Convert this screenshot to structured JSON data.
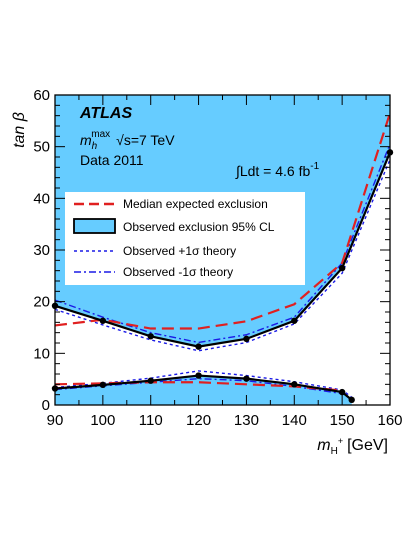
{
  "chart_data": {
    "type": "line",
    "title": "",
    "xlabel": "m",
    "xlabel_sub": "H",
    "xlabel_sup": "+",
    "xlabel_unit": "[GeV]",
    "ylabel": "tan β",
    "xlim": [
      90,
      160
    ],
    "ylim": [
      0,
      60
    ],
    "xticks": [
      90,
      100,
      110,
      120,
      130,
      140,
      150,
      160
    ],
    "yticks": [
      0,
      10,
      20,
      30,
      40,
      50,
      60
    ],
    "annotations": {
      "experiment": "ATLAS",
      "scenario_m": "m",
      "scenario_sub": "h",
      "scenario_sup": "max",
      "energy": "√s=7 TeV",
      "dataset": "Data 2011",
      "luminosity": "∫Ldt = 4.6 fb",
      "luminosity_sup": "-1"
    },
    "legend_position": "left-middle",
    "colors": {
      "fill": "#66ccff",
      "observed": "#000000",
      "expected": "#e02020",
      "theory": "#1a1ae6"
    },
    "series": [
      {
        "name": "Median expected exclusion",
        "style": "dashed-red",
        "upper": {
          "x": [
            90,
            100,
            110,
            120,
            130,
            140,
            150,
            160
          ],
          "y": [
            15.4,
            16.5,
            14.8,
            14.8,
            16.2,
            19.5,
            27.5,
            56.5
          ]
        },
        "lower": {
          "x": [
            90,
            100,
            110,
            120,
            130,
            140,
            150
          ],
          "y": [
            4.0,
            4.2,
            4.4,
            4.4,
            4.0,
            3.6,
            2.8
          ]
        }
      },
      {
        "name": "Observed exclusion 95% CL",
        "style": "solid-black-filled",
        "upper": {
          "x": [
            90,
            100,
            110,
            120,
            130,
            140,
            150,
            160
          ],
          "y": [
            19.2,
            16.3,
            13.3,
            11.3,
            12.8,
            16.3,
            26.5,
            48.9
          ]
        },
        "lower": {
          "x": [
            90,
            100,
            110,
            120,
            130,
            140,
            150,
            152
          ],
          "y": [
            3.2,
            3.9,
            4.7,
            5.7,
            5.1,
            4.0,
            2.5,
            1.0
          ]
        }
      },
      {
        "name": "Observed +1σ theory",
        "style": "dotted-blue",
        "upper": {
          "x": [
            90,
            100,
            110,
            120,
            130,
            140,
            150,
            160
          ],
          "y": [
            18.5,
            15.5,
            12.6,
            10.5,
            12.1,
            15.7,
            25.5,
            47.5
          ]
        },
        "lower": {
          "x": [
            90,
            100,
            110,
            120,
            130,
            140,
            150,
            152
          ],
          "y": [
            3.4,
            4.2,
            5.2,
            6.6,
            5.7,
            4.5,
            2.9,
            1.5
          ]
        }
      },
      {
        "name": "Observed -1σ theory",
        "style": "dashdot-blue",
        "upper": {
          "x": [
            90,
            100,
            110,
            120,
            130,
            140,
            150,
            160
          ],
          "y": [
            20.3,
            17.0,
            14.0,
            12.1,
            13.6,
            17.0,
            27.5,
            50.5
          ]
        },
        "lower": {
          "x": [
            90,
            100,
            110,
            120,
            130,
            140,
            150
          ],
          "y": [
            3.0,
            3.7,
            4.4,
            5.1,
            4.7,
            3.6,
            2.2
          ]
        }
      }
    ]
  }
}
